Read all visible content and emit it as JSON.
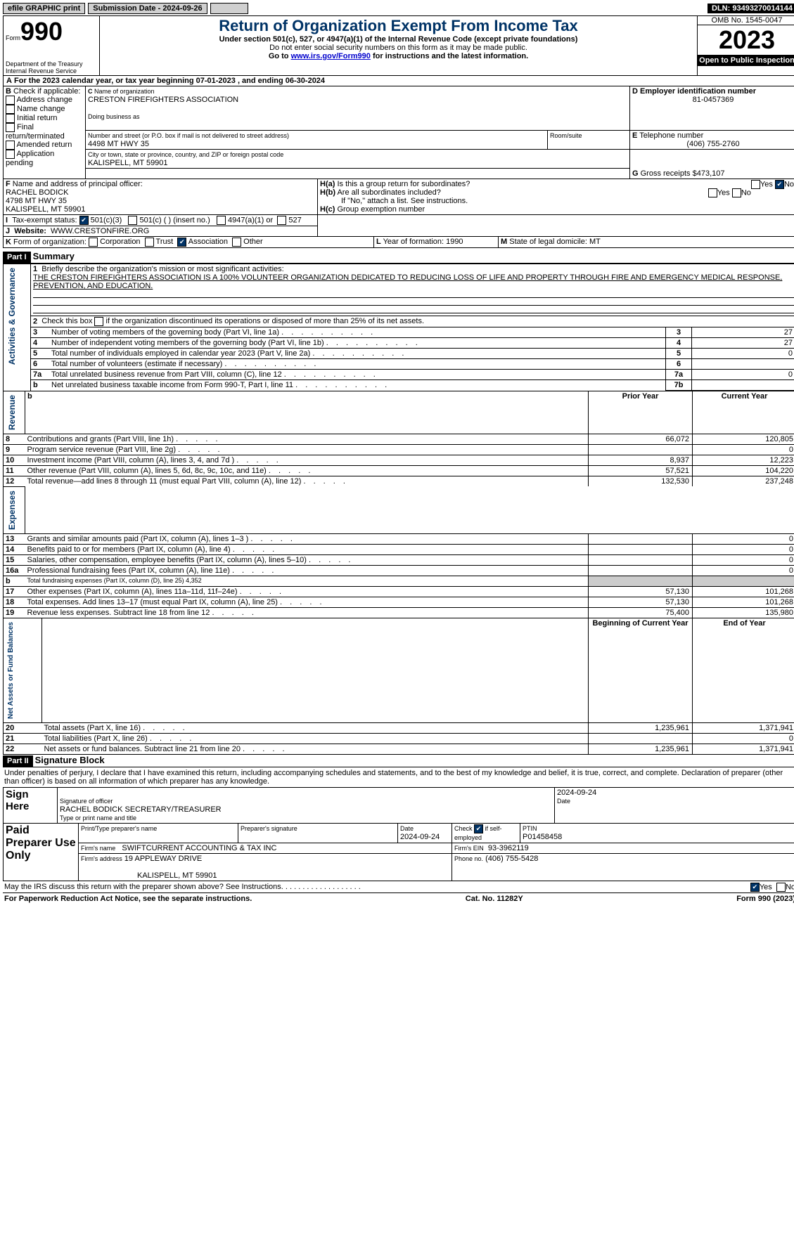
{
  "topbar": {
    "efile": "efile GRAPHIC print",
    "submission": "Submission Date - 2024-09-26",
    "dln": "DLN: 93493270014144"
  },
  "head": {
    "form_label": "Form",
    "form_no": "990",
    "title": "Return of Organization Exempt From Income Tax",
    "sub1": "Under section 501(c), 527, or 4947(a)(1) of the Internal Revenue Code (except private foundations)",
    "sub2": "Do not enter social security numbers on this form as it may be made public.",
    "sub3_pre": "Go to ",
    "sub3_link": "www.irs.gov/Form990",
    "sub3_post": " for instructions and the latest information.",
    "dept": "Department of the Treasury\nInternal Revenue Service",
    "omb": "OMB No. 1545-0047",
    "year": "2023",
    "open": "Open to Public Inspection"
  },
  "A": {
    "text": "For the 2023 calendar year, or tax year beginning 07-01-2023   , and ending 06-30-2024"
  },
  "B": {
    "label": "Check if applicable:",
    "opts": [
      "Address change",
      "Name change",
      "Initial return",
      "Final return/terminated",
      "Amended return",
      "Application pending"
    ]
  },
  "C": {
    "name_lbl": "Name of organization",
    "name": "CRESTON FIREFIGHTERS ASSOCIATION",
    "dba_lbl": "Doing business as",
    "dba": "",
    "street_lbl": "Number and street (or P.O. box if mail is not delivered to street address)",
    "street": "4498 MT HWY 35",
    "room_lbl": "Room/suite",
    "city_lbl": "City or town, state or province, country, and ZIP or foreign postal code",
    "city": "KALISPELL, MT  59901"
  },
  "D": {
    "lbl": "Employer identification number",
    "val": "81-0457369"
  },
  "E": {
    "lbl": "Telephone number",
    "val": "(406) 755-2760"
  },
  "G": {
    "lbl": "Gross receipts $",
    "val": "473,107"
  },
  "F": {
    "lbl": "Name and address of principal officer:",
    "lines": [
      "RACHEL BODICK",
      "4798 MT HWY 35",
      "KALISPELL, MT  59901"
    ]
  },
  "H": {
    "a": "Is this a group return for subordinates?",
    "a_yes": "Yes",
    "a_no": "No",
    "b": "Are all subordinates included?",
    "b_yes": "Yes",
    "b_no": "No",
    "b_note": "If \"No,\" attach a list. See instructions.",
    "c": "Group exemption number"
  },
  "I": {
    "lbl": "Tax-exempt status:",
    "o1": "501(c)(3)",
    "o2": "501(c) (  ) (insert no.)",
    "o3": "4947(a)(1) or",
    "o4": "527"
  },
  "J": {
    "lbl": "Website:",
    "val": "WWW.CRESTONFIRE.ORG"
  },
  "K": {
    "lbl": "Form of organization:",
    "opts": [
      "Corporation",
      "Trust",
      "Association",
      "Other"
    ],
    "checked": 2
  },
  "L": {
    "lbl": "Year of formation:",
    "val": "1990"
  },
  "M": {
    "lbl": "State of legal domicile:",
    "val": "MT"
  },
  "part1": {
    "hdr": "Part I",
    "title": "Summary",
    "l1_lbl": "Briefly describe the organization's mission or most significant activities:",
    "l1": "THE CRESTON FIREFIGHTERS ASSOCIATION IS A 100% VOLUNTEER ORGANIZATION DEDICATED TO REDUCING LOSS OF LIFE AND PROPERTY THROUGH FIRE AND EMERGENCY MEDICAL RESPONSE, PREVENTION, AND EDUCATION.",
    "l2": "Check this box       if the organization discontinued its operations or disposed of more than 25% of its net assets.",
    "rows_gov": [
      {
        "n": "3",
        "t": "Number of voting members of the governing body (Part VI, line 1a)",
        "box": "3",
        "v": "27"
      },
      {
        "n": "4",
        "t": "Number of independent voting members of the governing body (Part VI, line 1b)",
        "box": "4",
        "v": "27"
      },
      {
        "n": "5",
        "t": "Total number of individuals employed in calendar year 2023 (Part V, line 2a)",
        "box": "5",
        "v": "0"
      },
      {
        "n": "6",
        "t": "Total number of volunteers (estimate if necessary)",
        "box": "6",
        "v": ""
      },
      {
        "n": "7a",
        "t": "Total unrelated business revenue from Part VIII, column (C), line 12",
        "box": "7a",
        "v": "0"
      },
      {
        "n": "b",
        "t": "Net unrelated business taxable income from Form 990-T, Part I, line 11",
        "box": "7b",
        "v": ""
      }
    ],
    "col_prior": "Prior Year",
    "col_curr": "Current Year",
    "rows_rev": [
      {
        "n": "8",
        "t": "Contributions and grants (Part VIII, line 1h)",
        "p": "66,072",
        "c": "120,805"
      },
      {
        "n": "9",
        "t": "Program service revenue (Part VIII, line 2g)",
        "p": "",
        "c": "0"
      },
      {
        "n": "10",
        "t": "Investment income (Part VIII, column (A), lines 3, 4, and 7d )",
        "p": "8,937",
        "c": "12,223"
      },
      {
        "n": "11",
        "t": "Other revenue (Part VIII, column (A), lines 5, 6d, 8c, 9c, 10c, and 11e)",
        "p": "57,521",
        "c": "104,220"
      },
      {
        "n": "12",
        "t": "Total revenue—add lines 8 through 11 (must equal Part VIII, column (A), line 12)",
        "p": "132,530",
        "c": "237,248"
      }
    ],
    "rows_exp": [
      {
        "n": "13",
        "t": "Grants and similar amounts paid (Part IX, column (A), lines 1–3 )",
        "p": "",
        "c": "0"
      },
      {
        "n": "14",
        "t": "Benefits paid to or for members (Part IX, column (A), line 4)",
        "p": "",
        "c": "0"
      },
      {
        "n": "15",
        "t": "Salaries, other compensation, employee benefits (Part IX, column (A), lines 5–10)",
        "p": "",
        "c": "0"
      },
      {
        "n": "16a",
        "t": "Professional fundraising fees (Part IX, column (A), line 11e)",
        "p": "",
        "c": "0"
      },
      {
        "n": "b",
        "t": "Total fundraising expenses (Part IX, column (D), line 25) 4,352",
        "gray": true
      },
      {
        "n": "17",
        "t": "Other expenses (Part IX, column (A), lines 11a–11d, 11f–24e)",
        "p": "57,130",
        "c": "101,268"
      },
      {
        "n": "18",
        "t": "Total expenses. Add lines 13–17 (must equal Part IX, column (A), line 25)",
        "p": "57,130",
        "c": "101,268"
      },
      {
        "n": "19",
        "t": "Revenue less expenses. Subtract line 18 from line 12",
        "p": "75,400",
        "c": "135,980"
      }
    ],
    "col_beg": "Beginning of Current Year",
    "col_end": "End of Year",
    "rows_net": [
      {
        "n": "20",
        "t": "Total assets (Part X, line 16)",
        "p": "1,235,961",
        "c": "1,371,941"
      },
      {
        "n": "21",
        "t": "Total liabilities (Part X, line 26)",
        "p": "",
        "c": "0"
      },
      {
        "n": "22",
        "t": "Net assets or fund balances. Subtract line 21 from line 20",
        "p": "1,235,961",
        "c": "1,371,941"
      }
    ],
    "side_gov": "Activities & Governance",
    "side_rev": "Revenue",
    "side_exp": "Expenses",
    "side_net": "Net Assets or Fund Balances"
  },
  "part2": {
    "hdr": "Part II",
    "title": "Signature Block",
    "decl": "Under penalties of perjury, I declare that I have examined this return, including accompanying schedules and statements, and to the best of my knowledge and belief, it is true, correct, and complete. Declaration of preparer (other than officer) is based on all information of which preparer has any knowledge."
  },
  "sign": {
    "here": "Sign Here",
    "sig_lbl": "Signature of officer",
    "date_lbl": "Date",
    "date": "2024-09-24",
    "officer": "RACHEL BODICK  SECRETARY/TREASURER",
    "type_lbl": "Type or print name and title"
  },
  "paid": {
    "title": "Paid Preparer Use Only",
    "h1": "Print/Type preparer's name",
    "h2": "Preparer's signature",
    "h3": "Date",
    "h3v": "2024-09-24",
    "h4": "Check        if self-employed",
    "h5": "PTIN",
    "ptin": "P01458458",
    "firm_lbl": "Firm's name",
    "firm": "SWIFTCURRENT ACCOUNTING & TAX INC",
    "ein_lbl": "Firm's EIN",
    "ein": "93-3962119",
    "addr_lbl": "Firm's address",
    "addr1": "19 APPLEWAY DRIVE",
    "addr2": "KALISPELL, MT  59901",
    "phone_lbl": "Phone no.",
    "phone": "(406) 755-5428"
  },
  "foot": {
    "q": "May the IRS discuss this return with the preparer shown above? See Instructions.",
    "yes": "Yes",
    "no": "No",
    "pra": "For Paperwork Reduction Act Notice, see the separate instructions.",
    "cat": "Cat. No. 11282Y",
    "form": "Form 990 (2023)"
  }
}
